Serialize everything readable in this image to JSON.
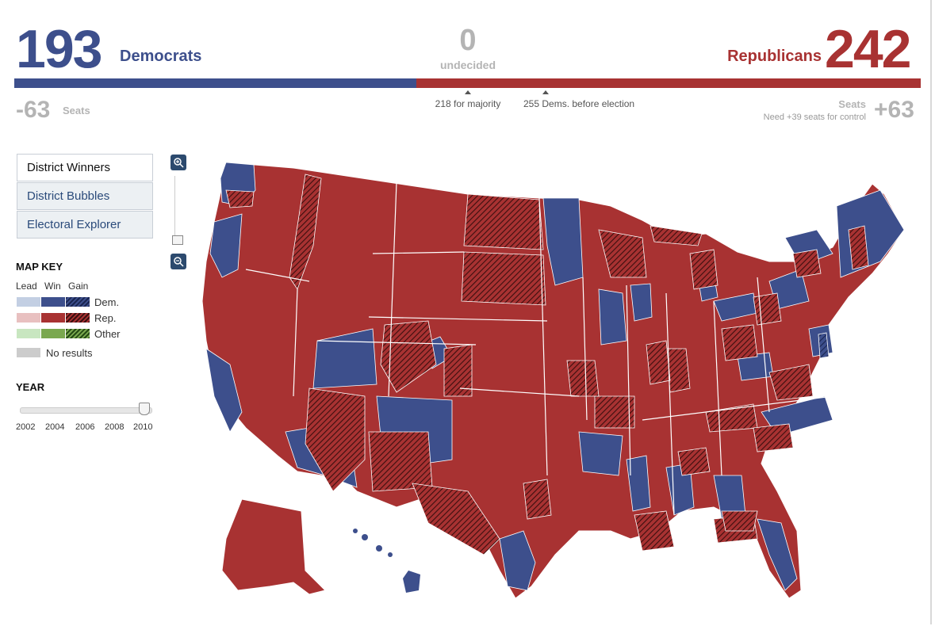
{
  "header": {
    "dem_seats": "193",
    "dem_label": "Democrats",
    "undecided_count": "0",
    "undecided_label": "undecided",
    "rep_label": "Republicans",
    "rep_seats": "242",
    "dem_share": 0.4437,
    "majority_label": "218 for majority",
    "before_label": "255 Dems. before election",
    "dem_change": "-63",
    "dem_change_unit": "Seats",
    "rep_change_unit": "Seats",
    "rep_control_note": "Need +39 seats for control",
    "rep_change": "+63"
  },
  "tabs": [
    {
      "label": "District Winners",
      "active": true
    },
    {
      "label": "District Bubbles",
      "active": false
    },
    {
      "label": "Electoral Explorer",
      "active": false
    }
  ],
  "map_key": {
    "title": "MAP KEY",
    "columns": [
      "Lead",
      "Win",
      "Gain"
    ],
    "rows": [
      {
        "label": "Dem.",
        "colors": [
          "#c3cfe3",
          "#3d4f8c",
          "#1a2550"
        ]
      },
      {
        "label": "Rep.",
        "colors": [
          "#e8c0c0",
          "#a83232",
          "#3a0f0f"
        ]
      },
      {
        "label": "Other",
        "colors": [
          "#c8e6c0",
          "#7aa84f",
          "#244a14"
        ]
      }
    ],
    "no_results_label": "No results",
    "no_results_color": "#cccccc"
  },
  "year": {
    "title": "YEAR",
    "ticks": [
      "2002",
      "2004",
      "2006",
      "2008",
      "2010"
    ],
    "selected": "2010"
  },
  "zoom": {
    "in_icon": "zoom-in-icon",
    "out_icon": "zoom-out-icon"
  },
  "colors": {
    "dem": "#3d4f8c",
    "rep": "#a83232",
    "neutral": "#b4b4b4"
  }
}
